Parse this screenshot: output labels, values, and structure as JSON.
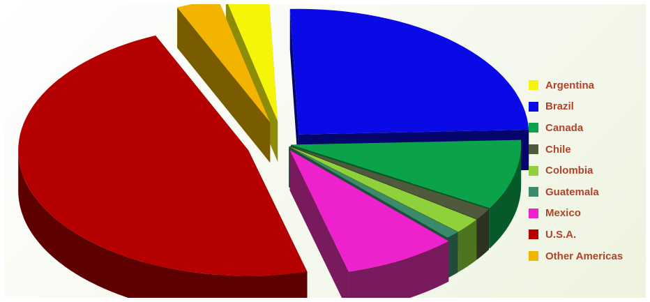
{
  "chart_data": {
    "type": "pie",
    "style": "3d-exploded",
    "categories": [
      "Argentina",
      "Brazil",
      "Canada",
      "Chile",
      "Colombia",
      "Guatemala",
      "Mexico",
      "U.S.A.",
      "Other Americas"
    ],
    "values": [
      3,
      25,
      9,
      1.5,
      2,
      1,
      8,
      47.5,
      3
    ],
    "colors": [
      "#f5f50a",
      "#0a0ae6",
      "#0aa34a",
      "#4f5a3c",
      "#8fd13a",
      "#3a8a6c",
      "#ee22cc",
      "#b40000",
      "#f2b400"
    ],
    "side_colors": [
      "#8c8c06",
      "#05056e",
      "#065a29",
      "#2b3220",
      "#4f7420",
      "#1f4c3b",
      "#7a1a5e",
      "#5c0000",
      "#7a5c00"
    ],
    "legend_position": "right",
    "title": ""
  }
}
